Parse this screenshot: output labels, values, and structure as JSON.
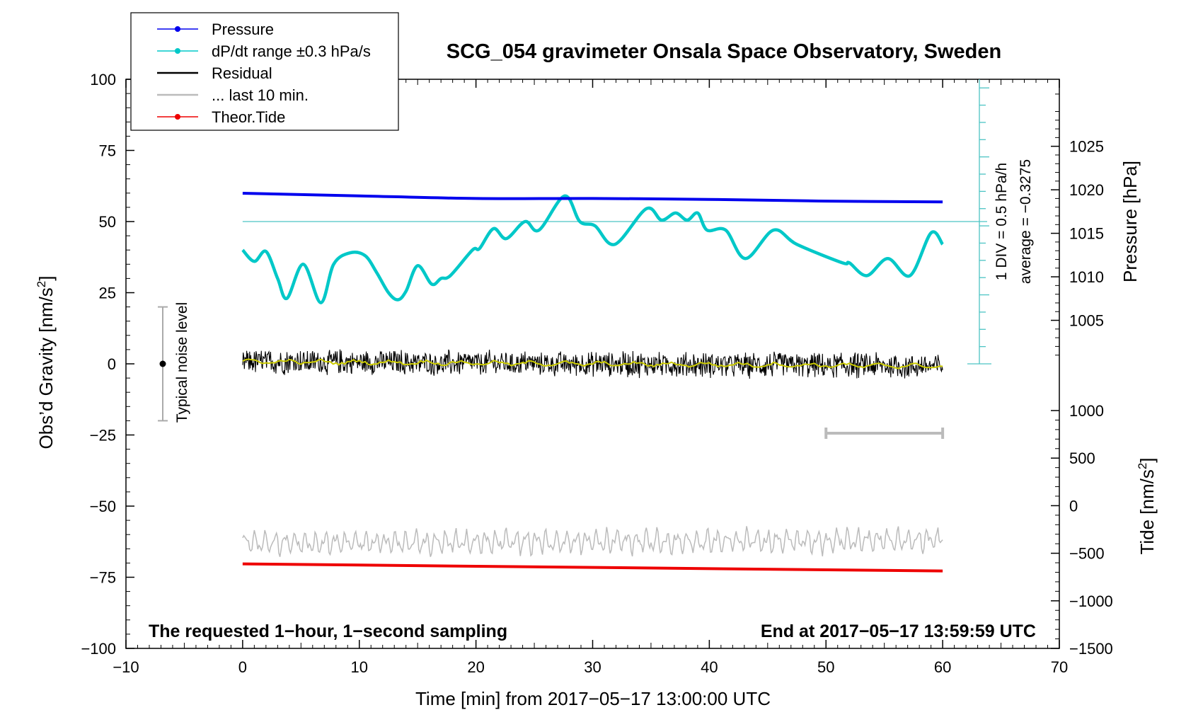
{
  "chart_data": {
    "type": "line",
    "title": "SCG_054 gravimeter Onsala Space Observatory, Sweden",
    "xlabel": "Time [min] from 2017−05−17 13:00:00 UTC",
    "ylabel_left_main": "Obs’d Gravity [nm/s",
    "ylabel_left_sup": "2",
    "ylabel_left_tail": "]",
    "ylabel_right_top": "Pressure [hPa]",
    "ylabel_right_bottom_main": "Tide [nm/s",
    "ylabel_right_bottom_sup": "2",
    "ylabel_right_bottom_tail": "]",
    "xlim": [
      -10,
      70
    ],
    "ylim": [
      -100,
      100
    ],
    "pressure_axis_range": [
      1000,
      1030
    ],
    "tide_axis_range": [
      -1500,
      1000
    ],
    "x_ticks": [
      "−10",
      "0",
      "10",
      "20",
      "30",
      "40",
      "50",
      "60",
      "70"
    ],
    "y_ticks": [
      "100",
      "75",
      "50",
      "25",
      "0",
      "−25",
      "−50",
      "−75",
      "−100"
    ],
    "pressure_ticks": [
      "1025",
      "1020",
      "1015",
      "1010",
      "1005"
    ],
    "tide_ticks": [
      "1000",
      "500",
      "0",
      "−500",
      "−1000",
      "−1500"
    ],
    "legend": {
      "placement": "top-left",
      "entries": [
        {
          "label": "Pressure",
          "color": "#0000ee",
          "marker": true
        },
        {
          "label": "dP/dt range ±0.3 hPa/s",
          "color": "#00c8c8",
          "marker": true
        },
        {
          "label": "Residual",
          "color": "#000000",
          "marker": false
        },
        {
          "label": "... last 10 min.",
          "color": "#bbbbbb",
          "marker": false
        },
        {
          "label": "Theor.Tide",
          "color": "#ee0000",
          "marker": true
        }
      ]
    },
    "series": [
      {
        "name": "Pressure",
        "color": "#0000ee",
        "x": [
          0,
          10,
          20,
          30,
          40,
          50,
          60
        ],
        "y": [
          1019.6,
          1019.3,
          1019.0,
          1019.0,
          1018.9,
          1018.7,
          1018.6
        ]
      },
      {
        "name": "dP/dt range ±0.3 hPa/s",
        "color": "#00c8c8",
        "x": [
          0,
          1,
          2,
          3,
          3.8,
          5.2,
          6.7,
          7.8,
          9.2,
          10.5,
          11.5,
          12.5,
          13.3,
          14,
          15,
          16.2,
          17,
          17.8,
          19.7,
          20.3,
          21.5,
          22.6,
          24.2,
          25.4,
          27.6,
          28.9,
          30.2,
          31.9,
          34.6,
          35.9,
          37.1,
          38.1,
          39,
          39.8,
          41.4,
          43.1,
          45.5,
          47.5,
          51.4,
          52,
          53.5,
          55.3,
          57.2,
          59,
          60
        ],
        "y": [
          40,
          36,
          39.5,
          30,
          23,
          35,
          21.5,
          35,
          39,
          38,
          32,
          25,
          22.5,
          25.5,
          34.5,
          28,
          30,
          31,
          40,
          40.5,
          47.5,
          44,
          50,
          47,
          59,
          50,
          48.5,
          42,
          54.5,
          50.5,
          53,
          50.5,
          53,
          47,
          47,
          37,
          47,
          42,
          35.5,
          35.5,
          31,
          37,
          31,
          46,
          42
        ]
      },
      {
        "name": "Residual",
        "color": "#000000",
        "x": [
          0,
          60
        ],
        "y": [
          0.8,
          -0.8
        ],
        "noise_amplitude": 5
      },
      {
        "name": "smoothed residual",
        "color": "#cccc00",
        "x": [
          0,
          60
        ],
        "y": [
          0.8,
          -0.8
        ]
      },
      {
        "name": "... last 10 min.",
        "color": "#bbbbbb",
        "x": [
          0,
          60
        ],
        "y": [
          -63,
          -62
        ]
      },
      {
        "name": "Theor.Tide",
        "color": "#ee0000",
        "x": [
          0,
          60
        ],
        "y": [
          -70.3,
          -72.8
        ]
      }
    ],
    "dpdt_reference_level": 50,
    "dpdt_scale_label": "1 DIV = 0.5 hPa/h",
    "dpdt_average_label": "average = −0.3275",
    "noise_label": "Typical noise level",
    "noise_level_range": [
      -20,
      20
    ],
    "last_10_min_range": [
      50,
      60
    ],
    "bottom_left_note": "The requested 1−hour, 1−second sampling",
    "bottom_right_note": "End at 2017−05−17 13:59:59 UTC"
  }
}
